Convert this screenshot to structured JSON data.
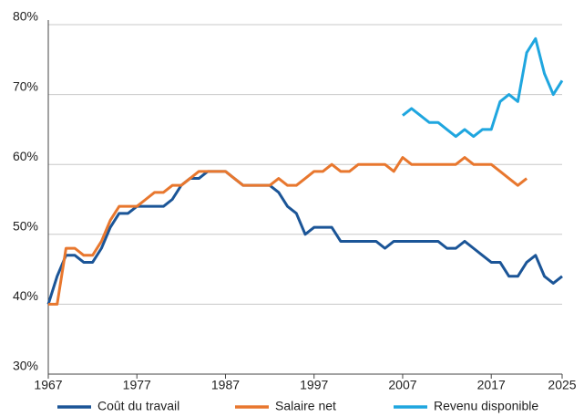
{
  "chart_data": {
    "type": "line",
    "x": [
      1967,
      1968,
      1969,
      1970,
      1971,
      1972,
      1973,
      1974,
      1975,
      1976,
      1977,
      1978,
      1979,
      1980,
      1981,
      1982,
      1983,
      1984,
      1985,
      1986,
      1987,
      1988,
      1989,
      1990,
      1991,
      1992,
      1993,
      1994,
      1995,
      1996,
      1997,
      1998,
      1999,
      2000,
      2001,
      2002,
      2003,
      2004,
      2005,
      2006,
      2007,
      2008,
      2009,
      2010,
      2011,
      2012,
      2013,
      2014,
      2015,
      2016,
      2017,
      2018,
      2019,
      2020,
      2021,
      2022,
      2023,
      2024,
      2025
    ],
    "series": [
      {
        "name": "Coût du travail",
        "color": "#1b5597",
        "values": [
          40,
          44,
          47,
          47,
          46,
          46,
          48,
          51,
          53,
          53,
          54,
          54,
          54,
          54,
          55,
          57,
          58,
          58,
          59,
          59,
          59,
          58,
          57,
          57,
          57,
          57,
          56,
          54,
          53,
          50,
          51,
          51,
          51,
          49,
          49,
          49,
          49,
          49,
          48,
          49,
          49,
          49,
          49,
          49,
          49,
          48,
          48,
          49,
          48,
          47,
          46,
          46,
          44,
          44,
          46,
          47,
          44,
          43,
          44
        ]
      },
      {
        "name": "Salaire net",
        "color": "#e8772e",
        "values": [
          40,
          40,
          48,
          48,
          47,
          47,
          49,
          52,
          54,
          54,
          54,
          55,
          56,
          56,
          57,
          57,
          58,
          59,
          59,
          59,
          59,
          58,
          57,
          57,
          57,
          57,
          58,
          57,
          57,
          58,
          59,
          59,
          60,
          59,
          59,
          60,
          60,
          60,
          60,
          59,
          61,
          60,
          60,
          60,
          60,
          60,
          60,
          61,
          60,
          60,
          60,
          59,
          58,
          57,
          58,
          null,
          null,
          null,
          null
        ]
      },
      {
        "name": "Revenu disponible",
        "color": "#1fa6df",
        "values": [
          null,
          null,
          null,
          null,
          null,
          null,
          null,
          null,
          null,
          null,
          null,
          null,
          null,
          null,
          null,
          null,
          null,
          null,
          null,
          null,
          null,
          null,
          null,
          null,
          null,
          null,
          null,
          null,
          null,
          null,
          null,
          null,
          null,
          null,
          null,
          null,
          null,
          null,
          null,
          null,
          67,
          68,
          67,
          66,
          66,
          65,
          64,
          65,
          64,
          65,
          65,
          69,
          70,
          69,
          76,
          78,
          73,
          70,
          72
        ]
      }
    ],
    "xlim": [
      1967,
      2025
    ],
    "xticks": [
      1967,
      1977,
      1987,
      1997,
      2007,
      2017,
      2025
    ],
    "ylim": [
      30,
      80
    ],
    "yticks": [
      {
        "value": 30,
        "label": "30%"
      },
      {
        "value": 40,
        "label": "40%"
      },
      {
        "value": 50,
        "label": "50%"
      },
      {
        "value": 60,
        "label": "60%"
      },
      {
        "value": 70,
        "label": "70%"
      },
      {
        "value": 80,
        "label": "80%"
      }
    ],
    "grid": true,
    "legend": "bottom"
  }
}
